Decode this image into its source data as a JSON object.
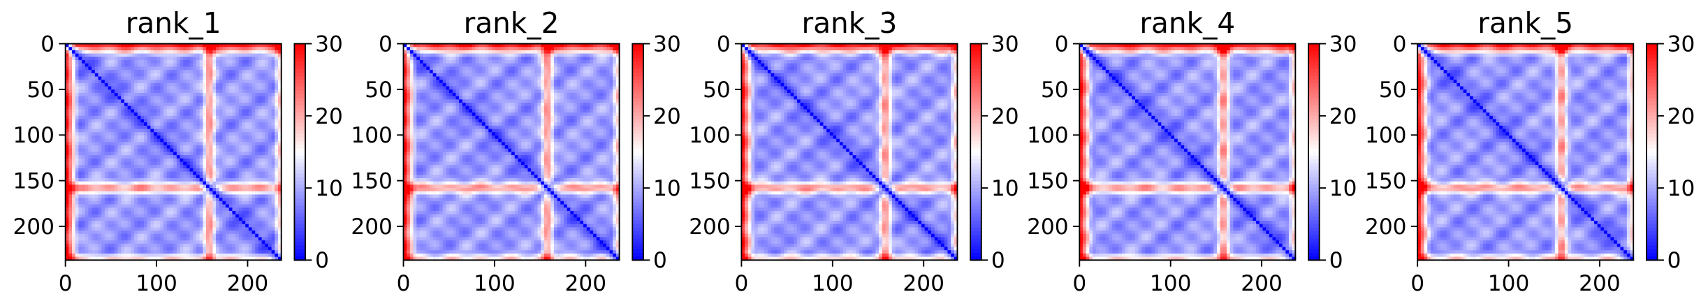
{
  "chart_data": [
    {
      "type": "heatmap",
      "title": "rank_1",
      "xlabel": "",
      "ylabel": "",
      "xlim": [
        0,
        237
      ],
      "ylim": [
        237,
        0
      ],
      "x_ticks": [
        0,
        100,
        200
      ],
      "y_ticks": [
        0,
        50,
        100,
        150,
        200
      ],
      "colorbar": {
        "min": 0,
        "max": 30,
        "ticks": [
          0,
          10,
          20,
          30
        ],
        "colormap": "bwr"
      },
      "matrix_size": 237,
      "pattern": "distance map: diagonal ~0; N-terminal rows/cols 0-15 and a band near residues 150-165 are far (red, ~25-30); remaining regions ~5-10 (blue)"
    },
    {
      "type": "heatmap",
      "title": "rank_2",
      "xlabel": "",
      "ylabel": "",
      "xlim": [
        0,
        237
      ],
      "ylim": [
        237,
        0
      ],
      "x_ticks": [
        0,
        100,
        200
      ],
      "y_ticks": [
        0,
        50,
        100,
        150,
        200
      ],
      "colorbar": {
        "min": 0,
        "max": 30,
        "ticks": [
          0,
          10,
          20,
          30
        ],
        "colormap": "bwr"
      },
      "matrix_size": 237,
      "pattern": "distance map: diagonal ~0; N-terminal rows/cols 0-15 and a band near residues 150-165 are far (red, ~25-30); remaining regions ~5-10 (blue)"
    },
    {
      "type": "heatmap",
      "title": "rank_3",
      "xlabel": "",
      "ylabel": "",
      "xlim": [
        0,
        237
      ],
      "ylim": [
        237,
        0
      ],
      "x_ticks": [
        0,
        100,
        200
      ],
      "y_ticks": [
        0,
        50,
        100,
        150,
        200
      ],
      "colorbar": {
        "min": 0,
        "max": 30,
        "ticks": [
          0,
          10,
          20,
          30
        ],
        "colormap": "bwr"
      },
      "matrix_size": 237,
      "pattern": "distance map: diagonal ~0; N-terminal rows/cols 0-15 and a band near residues 150-165 are far (red, ~25-30); remaining regions ~5-10 (blue)"
    },
    {
      "type": "heatmap",
      "title": "rank_4",
      "xlabel": "",
      "ylabel": "",
      "xlim": [
        0,
        237
      ],
      "ylim": [
        237,
        0
      ],
      "x_ticks": [
        0,
        100,
        200
      ],
      "y_ticks": [
        0,
        50,
        100,
        150,
        200
      ],
      "colorbar": {
        "min": 0,
        "max": 30,
        "ticks": [
          0,
          10,
          20,
          30
        ],
        "colormap": "bwr"
      },
      "matrix_size": 237,
      "pattern": "distance map: diagonal ~0; N-terminal rows/cols 0-15 and a band near residues 150-165 are far (red, ~25-30); remaining regions ~5-10 (blue)"
    },
    {
      "type": "heatmap",
      "title": "rank_5",
      "xlabel": "",
      "ylabel": "",
      "xlim": [
        0,
        237
      ],
      "ylim": [
        237,
        0
      ],
      "x_ticks": [
        0,
        100,
        200
      ],
      "y_ticks": [
        0,
        50,
        100,
        150,
        200
      ],
      "colorbar": {
        "min": 0,
        "max": 30,
        "ticks": [
          0,
          10,
          20,
          30
        ],
        "colormap": "bwr"
      },
      "matrix_size": 237,
      "pattern": "distance map: diagonal ~0; N-terminal rows/cols 0-15 and a band near residues 150-165 are far (red, ~25-30); remaining regions ~5-10 (blue)"
    }
  ],
  "colors": {
    "low": "#0000ff",
    "mid": "#ffffff",
    "high": "#ff0000"
  }
}
